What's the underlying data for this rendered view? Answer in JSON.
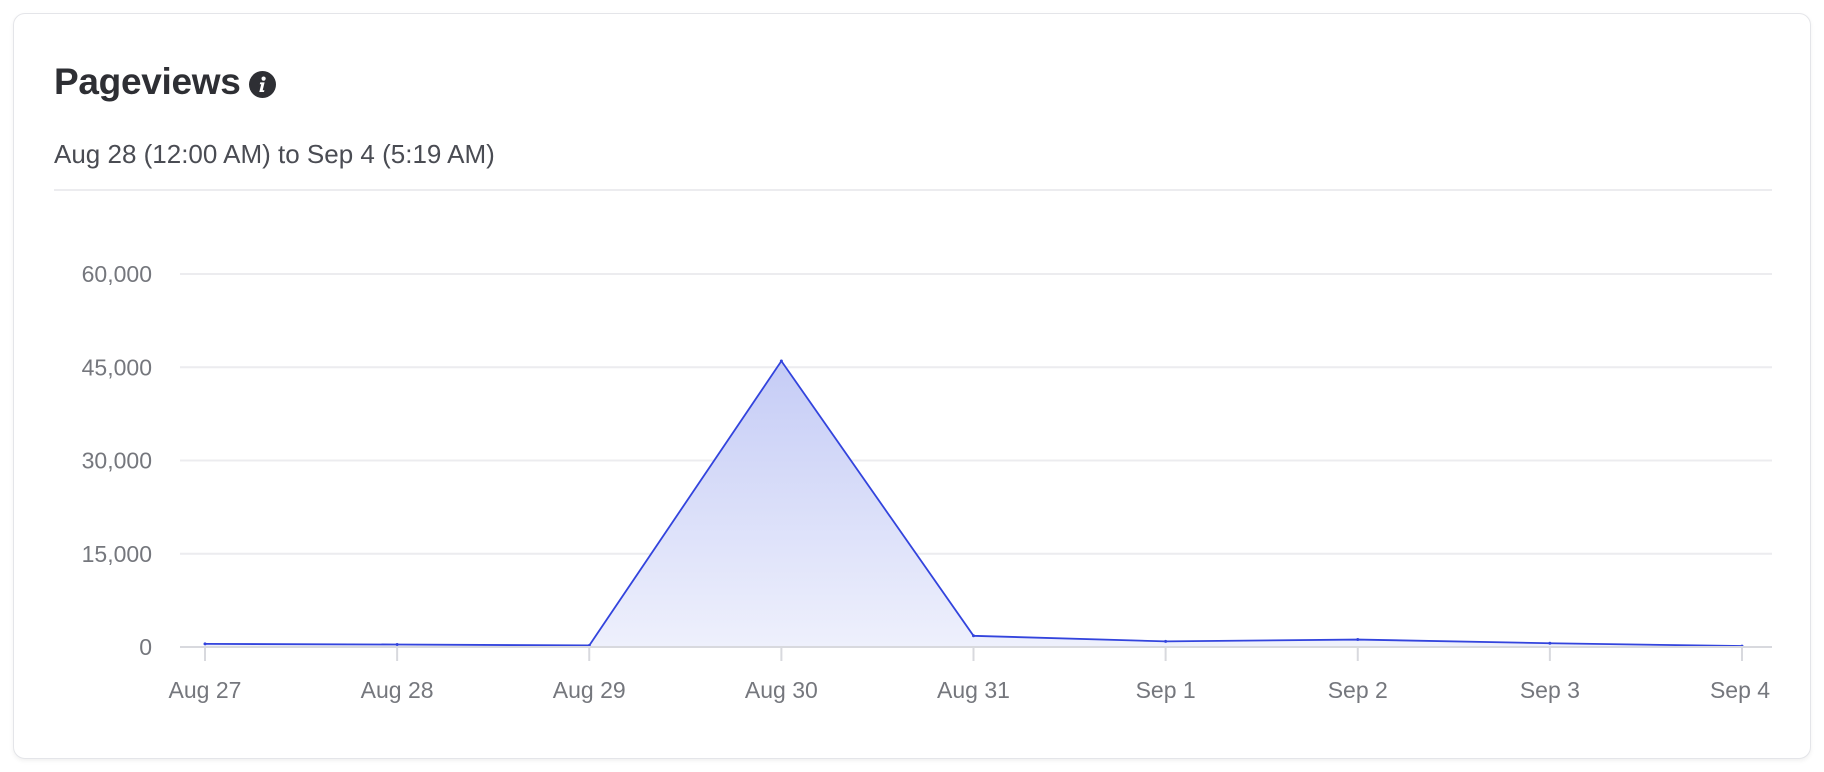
{
  "card": {
    "title": "Pageviews",
    "info_icon": "info-icon",
    "subtitle": "Aug 28 (12:00 AM) to Sep 4 (5:19 AM)"
  },
  "colors": {
    "line": "#3344dd",
    "fill_top": "#c5ccf6",
    "fill_bottom": "#eef0fc",
    "grid": "#ececef",
    "axis": "#d8d9de",
    "text_dark": "#2e2f34",
    "text_muted": "#75777d"
  },
  "chart_data": {
    "type": "area",
    "title": "Pageviews",
    "subtitle": "Aug 28 (12:00 AM) to Sep 4 (5:19 AM)",
    "xlabel": "",
    "ylabel": "",
    "categories": [
      "Aug 27",
      "Aug 28",
      "Aug 29",
      "Aug 30",
      "Aug 31",
      "Sep 1",
      "Sep 2",
      "Sep 3",
      "Sep 4"
    ],
    "y_ticks": [
      0,
      15000,
      30000,
      45000,
      60000
    ],
    "y_tick_labels": [
      "0",
      "15,000",
      "30,000",
      "45,000",
      "60,000"
    ],
    "ylim": [
      0,
      60000
    ],
    "grid": true,
    "legend": "none",
    "series": [
      {
        "values": [
          500,
          400,
          250,
          46000,
          1800,
          900,
          1200,
          600,
          150
        ]
      }
    ]
  }
}
